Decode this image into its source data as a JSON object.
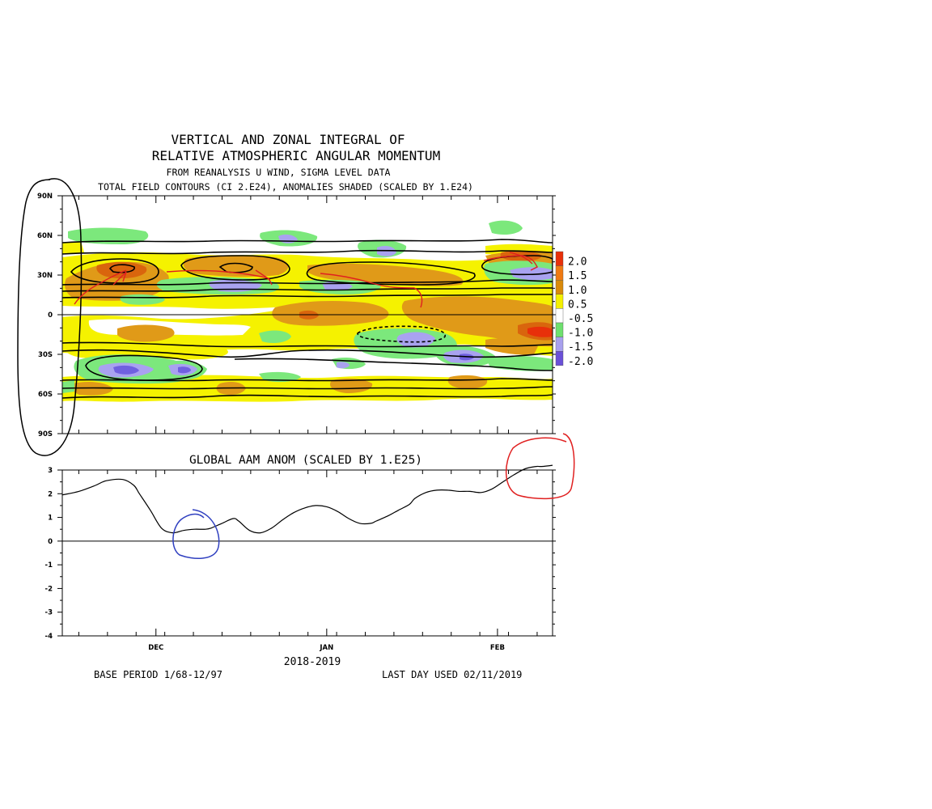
{
  "chart_data": [
    {
      "type": "heatmap",
      "title_lines": [
        "VERTICAL AND ZONAL INTEGRAL OF",
        "RELATIVE ATMOSPHERIC ANGULAR MOMENTUM"
      ],
      "subtitle_lines": [
        "FROM REANALYSIS U WIND,  SIGMA LEVEL DATA",
        "TOTAL FIELD CONTOURS (CI 2.E24),  ANOMALIES SHADED (SCALED BY 1.E24)"
      ],
      "y_ticks": [
        "90N",
        "60N",
        "30N",
        "0",
        "30S",
        "60S",
        "90S"
      ],
      "y_tick_values": [
        90,
        60,
        30,
        0,
        -30,
        -60,
        -90
      ],
      "legend": {
        "labels": [
          "2.0",
          "1.5",
          "1.0",
          "0.5",
          "-0.5",
          "-1.0",
          "-1.5",
          "-2.0"
        ],
        "colors": [
          "#e8300a",
          "#f07a12",
          "#d98a0a",
          "#f4f000",
          "#ffffff",
          "#6ee06e",
          "#a8a0ee",
          "#6a50d8"
        ]
      },
      "shading_colors": {
        "yellow": "#f5f200",
        "orange": "#e09a18",
        "dark_orange": "#d9650d",
        "red": "#e8300a",
        "green": "#7ce87c",
        "lavender": "#a9a2f0",
        "purple": "#7060e0"
      }
    },
    {
      "type": "line",
      "title": "GLOBAL AAM ANOM (SCALED BY 1.E25)",
      "x_tick_labels": [
        "DEC",
        "JAN",
        "FEB"
      ],
      "x_tick_positions_day": [
        30,
        61,
        92
      ],
      "x_range_day": [
        13,
        102
      ],
      "xlabel": "2018-2019",
      "ylim": [
        -4,
        3
      ],
      "y_ticks": [
        3,
        2,
        1,
        0,
        -1,
        -2,
        -3,
        -4
      ],
      "zero_line": true,
      "series": [
        {
          "x": [
            13,
            16,
            19,
            21,
            24,
            26,
            27,
            29,
            31,
            33,
            35,
            37,
            39,
            40,
            42,
            44,
            45,
            47,
            49,
            51,
            53,
            55,
            57,
            59,
            61,
            63,
            65,
            67,
            69,
            70,
            72,
            74,
            76,
            77,
            79,
            81,
            83,
            85,
            87,
            89,
            91,
            93,
            95,
            97,
            99,
            100,
            102
          ],
          "y": [
            1.95,
            2.1,
            2.35,
            2.55,
            2.6,
            2.35,
            2.0,
            1.3,
            0.55,
            0.35,
            0.45,
            0.5,
            0.5,
            0.55,
            0.75,
            0.95,
            0.85,
            0.45,
            0.35,
            0.55,
            0.9,
            1.2,
            1.4,
            1.5,
            1.45,
            1.25,
            0.95,
            0.75,
            0.75,
            0.85,
            1.05,
            1.3,
            1.55,
            1.8,
            2.05,
            2.15,
            2.15,
            2.1,
            2.1,
            2.05,
            2.2,
            2.5,
            2.8,
            3.05,
            3.15,
            3.15,
            3.2
          ]
        }
      ]
    }
  ],
  "footer": {
    "base_period": "BASE PERIOD  1/68-12/97",
    "last_day": "LAST DAY USED 02/11/2019"
  },
  "annotations": {
    "black_ellipse_color": "#000000",
    "red_marks_color": "#e02020",
    "blue_circle_color": "#3040c0"
  }
}
